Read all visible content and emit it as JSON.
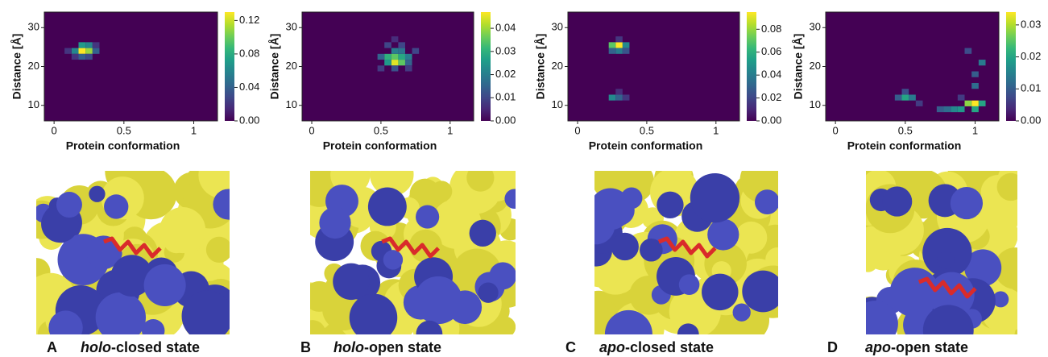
{
  "chart_data": [
    {
      "type": "heatmap",
      "xlabel": "Protein conformation",
      "ylabel": "Distance [Å]",
      "colormap": "viridis",
      "xlim": [
        -0.07,
        1.17
      ],
      "ylim": [
        6,
        34
      ],
      "xticks": [
        0,
        0.5,
        1
      ],
      "yticks": [
        10,
        20,
        30
      ],
      "clim": [
        0,
        0.13
      ],
      "cticks": [
        {
          "value": 0,
          "label": "0.00"
        },
        0.04,
        0.08,
        0.12
      ],
      "x_bin_width": 0.05,
      "y_bin_width": 1.5,
      "cell_x": [
        0.2,
        0.25,
        0.15,
        0.2,
        0.25,
        0.3,
        0.2,
        0.25,
        0.1,
        0.3,
        0.15
      ],
      "cell_y": [
        24,
        24,
        24,
        25.5,
        25.5,
        24,
        22.5,
        22.5,
        24,
        25.5,
        22.5
      ],
      "values": [
        0.13,
        0.11,
        0.06,
        0.07,
        0.06,
        0.04,
        0.04,
        0.03,
        0.02,
        0.02,
        0.02
      ]
    },
    {
      "type": "heatmap",
      "xlabel": "Protein conformation",
      "ylabel": "Distance [Å]",
      "colormap": "viridis",
      "xlim": [
        -0.07,
        1.17
      ],
      "ylim": [
        6,
        34
      ],
      "xticks": [
        0,
        0.5,
        1
      ],
      "yticks": [
        10,
        20,
        30
      ],
      "clim": [
        0,
        0.047
      ],
      "cticks": [
        {
          "value": 0,
          "label": "0.00"
        },
        0.01,
        0.02,
        0.03,
        0.04
      ],
      "x_bin_width": 0.05,
      "y_bin_width": 1.5,
      "cell_x": [
        0.6,
        0.65,
        0.55,
        0.6,
        0.65,
        0.7,
        0.55,
        0.6,
        0.65,
        0.5,
        0.7,
        0.6,
        0.55,
        0.65,
        0.75,
        0.5,
        0.6,
        0.7
      ],
      "cell_y": [
        21,
        21,
        22.5,
        22.5,
        22.5,
        22.5,
        21,
        24,
        24,
        22.5,
        21,
        19.5,
        25.5,
        25.5,
        24,
        19.5,
        27,
        19.5
      ],
      "values": [
        0.045,
        0.035,
        0.03,
        0.035,
        0.028,
        0.02,
        0.025,
        0.02,
        0.018,
        0.015,
        0.015,
        0.012,
        0.01,
        0.01,
        0.01,
        0.008,
        0.006,
        0.008
      ]
    },
    {
      "type": "heatmap",
      "xlabel": "Protein conformation",
      "ylabel": "Distance [Å]",
      "colormap": "viridis",
      "xlim": [
        -0.07,
        1.17
      ],
      "ylim": [
        6,
        34
      ],
      "xticks": [
        0,
        0.5,
        1
      ],
      "yticks": [
        10,
        20,
        30
      ],
      "clim": [
        0,
        0.095
      ],
      "cticks": [
        {
          "value": 0,
          "label": "0.00"
        },
        {
          "value": 0.02,
          "label": "0.02"
        },
        {
          "value": 0.04,
          "label": "0.04"
        },
        {
          "value": 0.06,
          "label": "0.06"
        },
        {
          "value": 0.08,
          "label": "0.08"
        }
      ],
      "x_bin_width": 0.05,
      "y_bin_width": 1.5,
      "cell_x": [
        0.3,
        0.25,
        0.35,
        0.3,
        0.25,
        0.35,
        0.3,
        0.25,
        0.3,
        0.35,
        0.3
      ],
      "cell_y": [
        25.5,
        25.5,
        25.5,
        24,
        24,
        24,
        27,
        12,
        12,
        12,
        13.5
      ],
      "values": [
        0.095,
        0.07,
        0.045,
        0.04,
        0.03,
        0.025,
        0.015,
        0.045,
        0.03,
        0.015,
        0.012
      ]
    },
    {
      "type": "heatmap",
      "xlabel": "Protein conformation",
      "ylabel": "Distance [Å]",
      "colormap": "viridis",
      "xlim": [
        -0.07,
        1.17
      ],
      "ylim": [
        6,
        34
      ],
      "xticks": [
        0,
        0.5,
        1
      ],
      "yticks": [
        10,
        20,
        30
      ],
      "clim": [
        0,
        0.034
      ],
      "cticks": [
        {
          "value": 0,
          "label": "0.00"
        },
        0.01,
        0.02,
        0.03
      ],
      "x_bin_width": 0.05,
      "y_bin_width": 1.5,
      "cell_x": [
        1.0,
        0.95,
        1.05,
        0.9,
        0.85,
        0.8,
        1.0,
        0.5,
        0.55,
        0.45,
        0.5,
        1.0,
        1.0,
        1.05,
        0.95,
        0.9,
        0.6,
        0.75
      ],
      "cell_y": [
        10.5,
        10.5,
        10.5,
        9,
        9,
        9,
        9,
        12,
        12,
        12,
        13.5,
        15,
        18,
        21,
        24,
        12,
        10.5,
        9
      ],
      "values": [
        0.034,
        0.028,
        0.02,
        0.018,
        0.016,
        0.012,
        0.02,
        0.02,
        0.014,
        0.01,
        0.008,
        0.012,
        0.01,
        0.014,
        0.008,
        0.006,
        0.006,
        0.01
      ]
    }
  ],
  "captions": [
    {
      "letter": "A",
      "italic": "holo",
      "rest": "-closed state"
    },
    {
      "letter": "B",
      "italic": "holo",
      "rest": "-open state"
    },
    {
      "letter": "C",
      "italic": "apo",
      "rest": "-closed state"
    },
    {
      "letter": "D",
      "italic": "apo",
      "rest": "-open state"
    }
  ]
}
